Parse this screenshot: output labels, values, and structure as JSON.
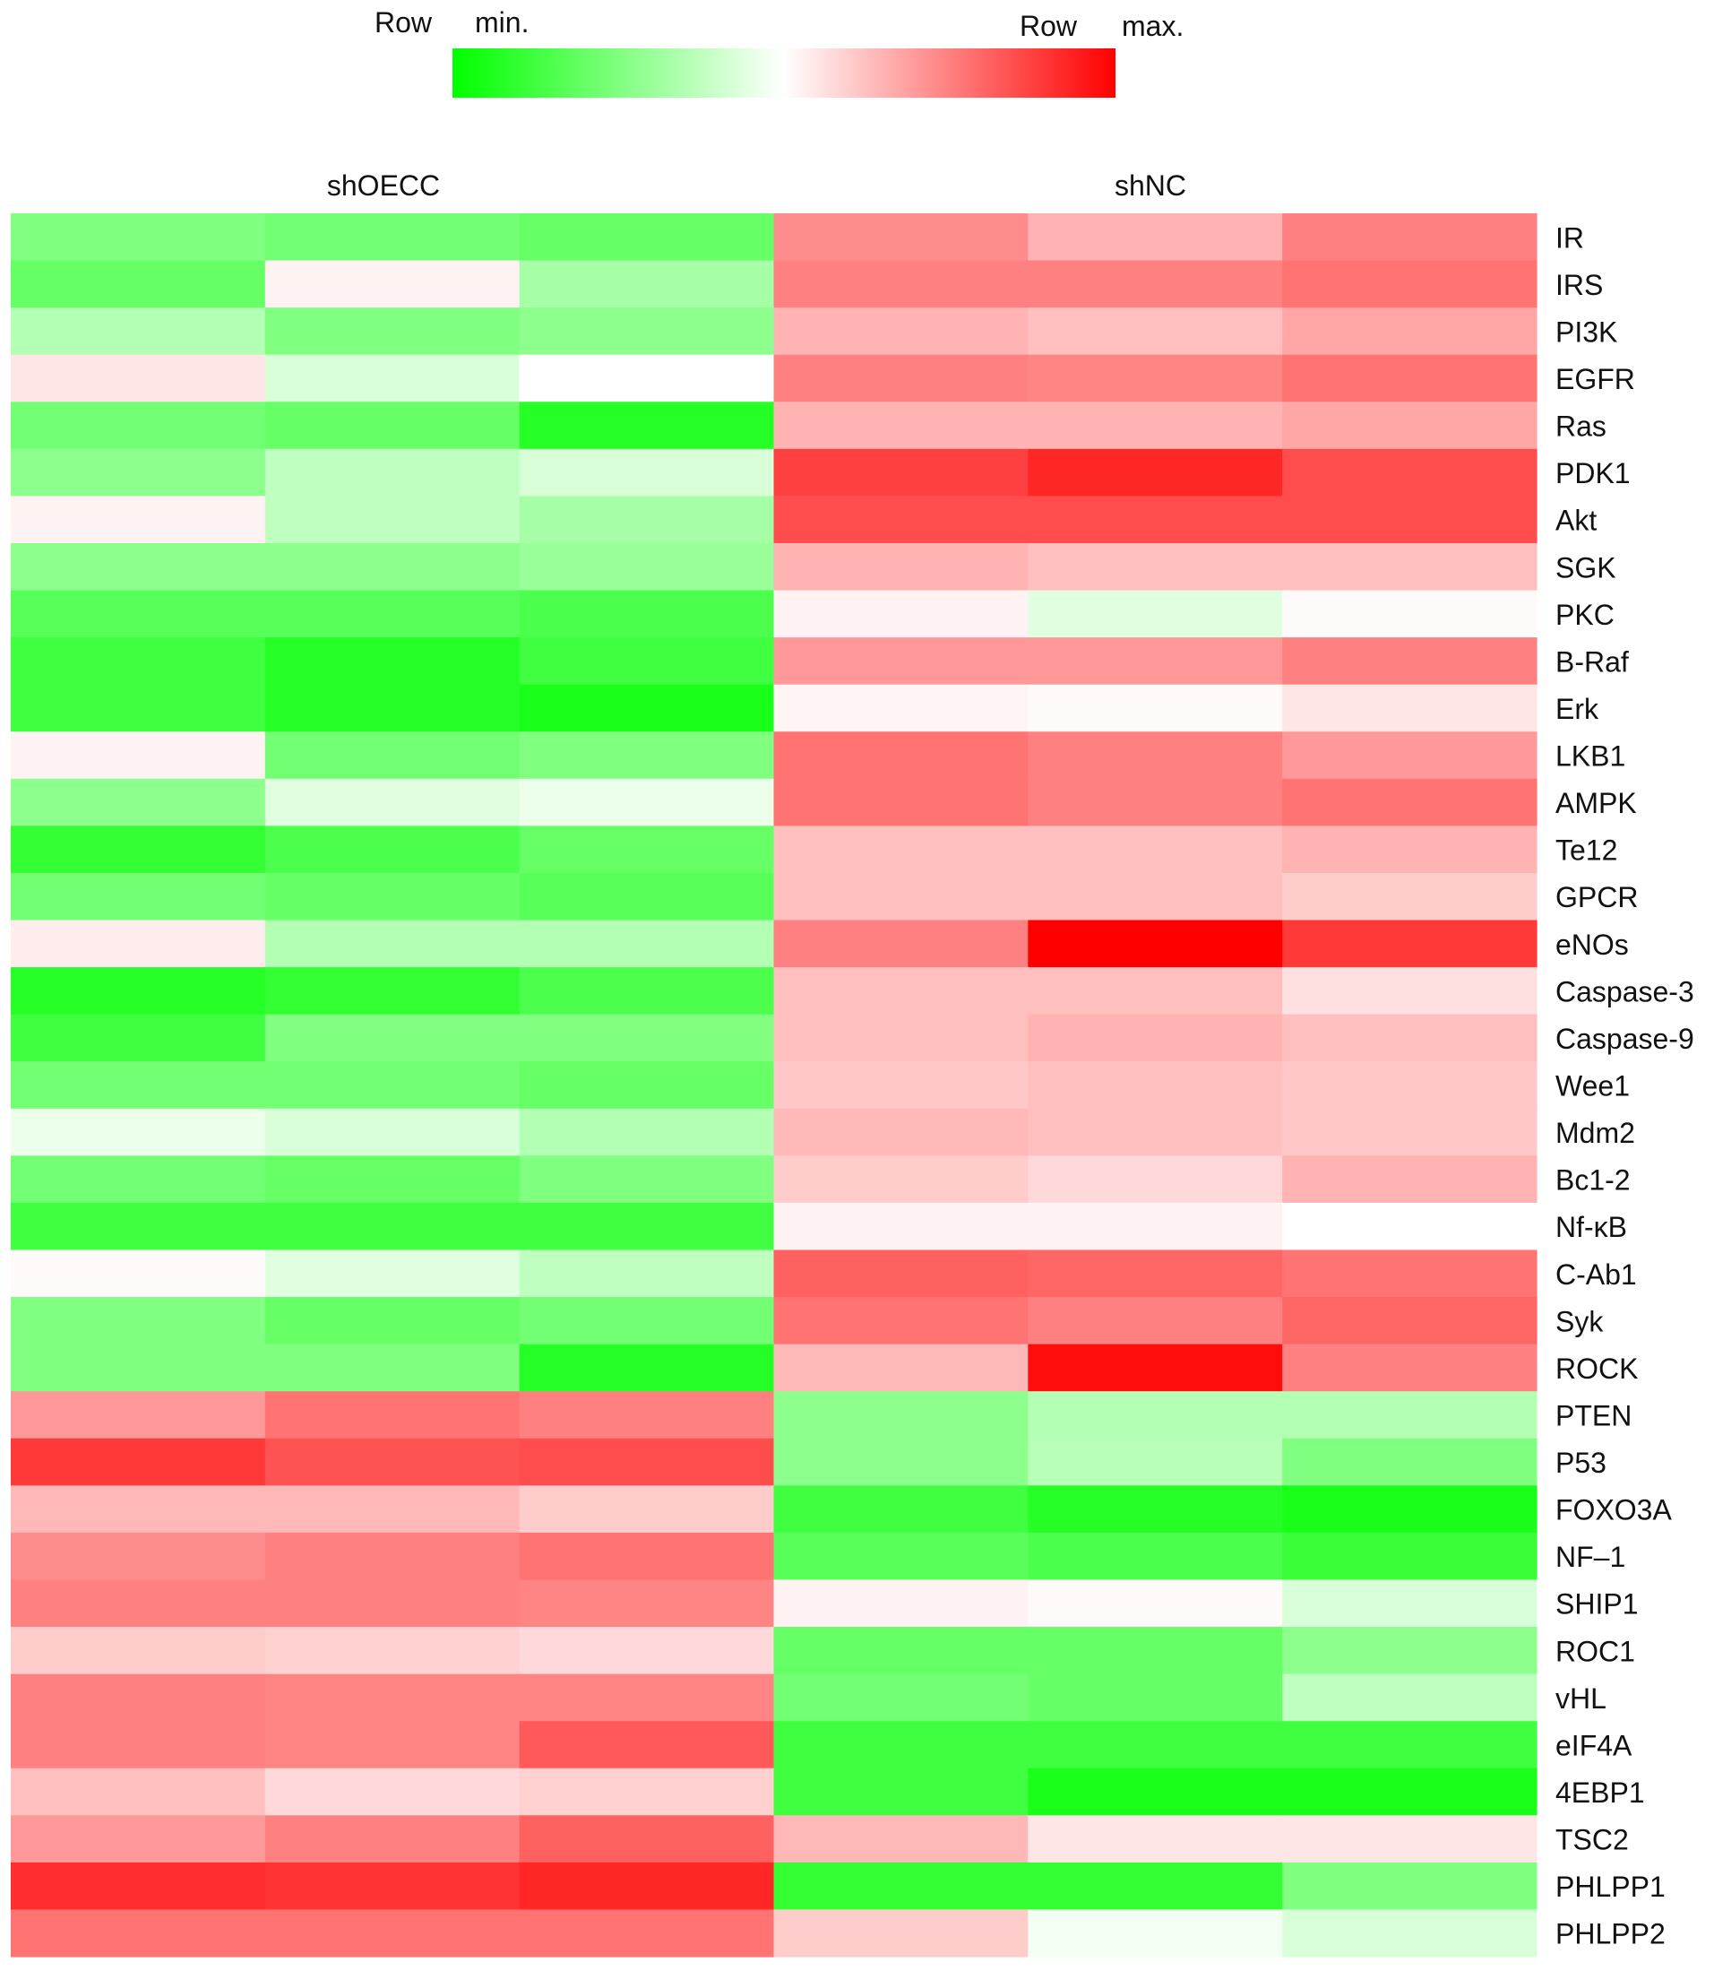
{
  "legend": {
    "min_word1": "Row",
    "min_word2": "min.",
    "max_word1": "Row",
    "max_word2": "max.",
    "color_min": "#00ff00",
    "color_mid": "#ffffff",
    "color_max": "#ff0000"
  },
  "chart_data": {
    "type": "heatmap",
    "title": "",
    "scale": "row-normalized, -1 (row min) to 1 (row max)",
    "groups": [
      {
        "name": "shOECC",
        "columns": 3
      },
      {
        "name": "shNC",
        "columns": 3
      }
    ],
    "rows": [
      "IR",
      "IRS",
      "PI3K",
      "EGFR",
      "Ras",
      "PDK1",
      "Akt",
      "SGK",
      "PKC",
      "B-Raf",
      "Erk",
      "LKB1",
      "AMPK",
      "Te12",
      "GPCR",
      "eNOs",
      "Caspase-3",
      "Caspase-9",
      "Wee1",
      "Mdm2",
      "Bc1-2",
      "Nf-κB",
      "C-Ab1",
      "Syk",
      "ROCK",
      "PTEN",
      "P53",
      "FOXO3A",
      "NF–1",
      "SHIP1",
      "ROC1",
      "vHL",
      "eIF4A",
      "4EBP1",
      "TSC2",
      "PHLPP1",
      "PHLPP2"
    ],
    "values": [
      [
        -0.5,
        -0.55,
        -0.6,
        0.45,
        0.3,
        0.5
      ],
      [
        -0.6,
        0.05,
        -0.35,
        0.5,
        0.5,
        0.55
      ],
      [
        -0.3,
        -0.5,
        -0.45,
        0.3,
        0.25,
        0.35
      ],
      [
        0.1,
        -0.15,
        0.0,
        0.5,
        0.48,
        0.55
      ],
      [
        -0.55,
        -0.6,
        -0.85,
        0.3,
        0.3,
        0.35
      ],
      [
        -0.45,
        -0.25,
        -0.15,
        0.75,
        0.85,
        0.7
      ],
      [
        0.05,
        -0.25,
        -0.35,
        0.7,
        0.7,
        0.7
      ],
      [
        -0.45,
        -0.45,
        -0.4,
        0.3,
        0.25,
        0.25
      ],
      [
        -0.65,
        -0.65,
        -0.7,
        0.05,
        -0.12,
        0.02
      ],
      [
        -0.75,
        -0.85,
        -0.75,
        0.4,
        0.4,
        0.5
      ],
      [
        -0.75,
        -0.85,
        -0.9,
        0.04,
        0.02,
        0.1
      ],
      [
        0.05,
        -0.55,
        -0.5,
        0.55,
        0.5,
        0.4
      ],
      [
        -0.45,
        -0.12,
        -0.08,
        0.55,
        0.5,
        0.55
      ],
      [
        -0.8,
        -0.7,
        -0.6,
        0.25,
        0.25,
        0.3
      ],
      [
        -0.55,
        -0.6,
        -0.65,
        0.25,
        0.25,
        0.2
      ],
      [
        0.07,
        -0.3,
        -0.3,
        0.5,
        1.0,
        0.78
      ],
      [
        -0.85,
        -0.8,
        -0.7,
        0.25,
        0.25,
        0.12
      ],
      [
        -0.75,
        -0.5,
        -0.5,
        0.25,
        0.3,
        0.25
      ],
      [
        -0.55,
        -0.55,
        -0.6,
        0.22,
        0.25,
        0.22
      ],
      [
        -0.08,
        -0.15,
        -0.3,
        0.28,
        0.25,
        0.22
      ],
      [
        -0.55,
        -0.6,
        -0.5,
        0.2,
        0.15,
        0.3
      ],
      [
        -0.75,
        -0.75,
        -0.75,
        0.05,
        0.05,
        0.0
      ],
      [
        0.02,
        -0.12,
        -0.25,
        0.62,
        0.6,
        0.55
      ],
      [
        -0.5,
        -0.6,
        -0.55,
        0.55,
        0.5,
        0.6
      ],
      [
        -0.5,
        -0.5,
        -0.85,
        0.28,
        0.95,
        0.5
      ],
      [
        0.4,
        0.55,
        0.5,
        -0.45,
        -0.3,
        -0.3
      ],
      [
        0.78,
        0.68,
        0.7,
        -0.45,
        -0.28,
        -0.5
      ],
      [
        0.28,
        0.28,
        0.2,
        -0.75,
        -0.85,
        -0.9
      ],
      [
        0.45,
        0.5,
        0.55,
        -0.65,
        -0.7,
        -0.78
      ],
      [
        0.5,
        0.5,
        0.48,
        0.05,
        0.02,
        -0.15
      ],
      [
        0.2,
        0.18,
        0.15,
        -0.6,
        -0.6,
        -0.45
      ],
      [
        0.5,
        0.48,
        0.48,
        -0.55,
        -0.6,
        -0.25
      ],
      [
        0.5,
        0.48,
        0.65,
        -0.75,
        -0.75,
        -0.75
      ],
      [
        0.25,
        0.15,
        0.18,
        -0.75,
        -0.9,
        -0.9
      ],
      [
        0.4,
        0.5,
        0.62,
        0.28,
        0.1,
        0.1
      ],
      [
        0.82,
        0.8,
        0.85,
        -0.8,
        -0.8,
        -0.5
      ],
      [
        0.55,
        0.55,
        0.55,
        0.2,
        -0.05,
        -0.15
      ]
    ]
  }
}
